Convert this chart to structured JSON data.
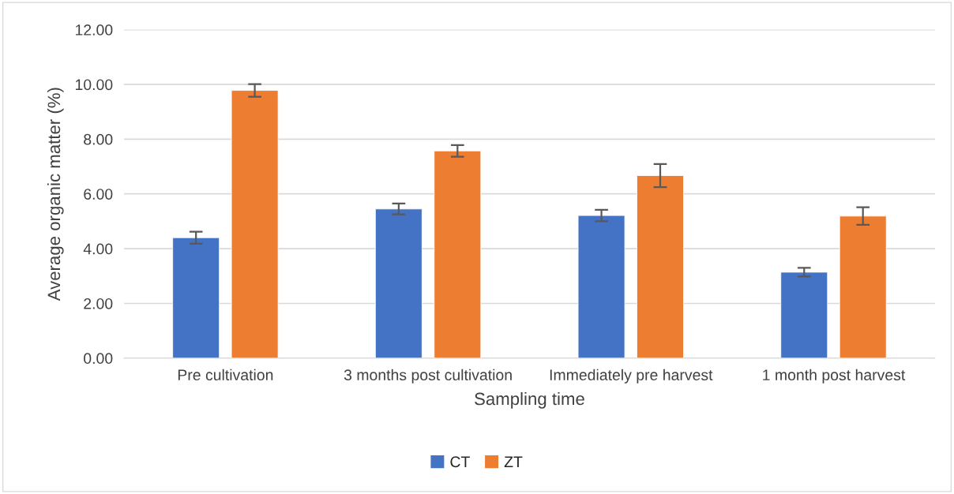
{
  "chart_data": {
    "type": "bar",
    "xlabel": "Sampling time",
    "ylabel": "Average organic matter (%)",
    "categories": [
      "Pre cultivation",
      "3 months post cultivation",
      "Immediately pre harvest",
      "1 month post harvest"
    ],
    "series": [
      {
        "name": "CT",
        "color": "#4472c4",
        "values": [
          4.4,
          5.45,
          5.21,
          3.14
        ],
        "errors": [
          0.22,
          0.2,
          0.21,
          0.16
        ]
      },
      {
        "name": "ZT",
        "color": "#ed7d31",
        "values": [
          9.78,
          7.57,
          6.67,
          5.19
        ],
        "errors": [
          0.23,
          0.21,
          0.42,
          0.32
        ]
      }
    ],
    "ylim": [
      0,
      12
    ],
    "yticks": [
      {
        "value": 0,
        "label": "0.00"
      },
      {
        "value": 2,
        "label": "2.00"
      },
      {
        "value": 4,
        "label": "4.00"
      },
      {
        "value": 6,
        "label": "6.00"
      },
      {
        "value": 8,
        "label": "8.00"
      },
      {
        "value": 10,
        "label": "10.00"
      },
      {
        "value": 12,
        "label": "12.00"
      }
    ],
    "grid": "y",
    "legend": "bottom"
  }
}
